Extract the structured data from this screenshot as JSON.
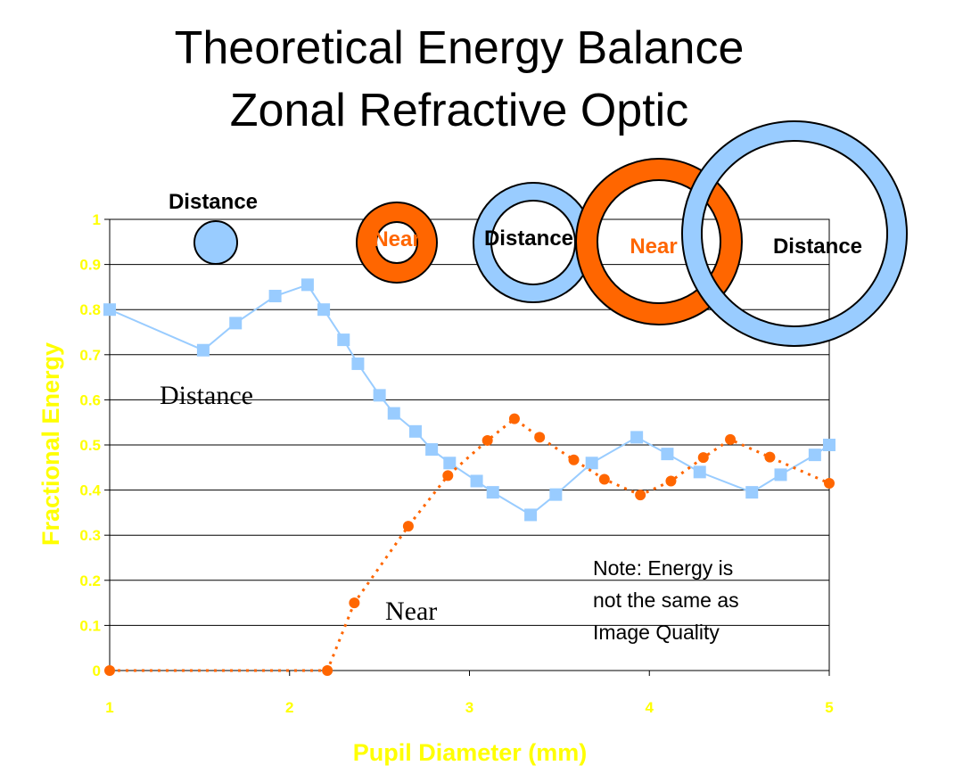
{
  "chart_data": {
    "type": "line",
    "title_line1": "Theoretical Energy Balance",
    "title_line2": "Zonal Refractive Optic",
    "xlabel": "Pupil Diameter (mm)",
    "ylabel": "Fractional Energy",
    "xlim": [
      1,
      5
    ],
    "ylim": [
      0,
      1
    ],
    "x_ticks": [
      "1",
      "2",
      "3",
      "4",
      "5"
    ],
    "y_ticks": [
      "0",
      "0.1",
      "0.2",
      "0.3",
      "0.4",
      "0.5",
      "0.6",
      "0.7",
      "0.8",
      "0.9",
      "1"
    ],
    "grid": "horizontal",
    "series": [
      {
        "name": "Distance",
        "style": "solid",
        "marker": "square",
        "color": "#99CCFF",
        "x": [
          1.0,
          1.52,
          1.7,
          1.92,
          2.1,
          2.19,
          2.3,
          2.38,
          2.5,
          2.58,
          2.7,
          2.79,
          2.89,
          3.04,
          3.13,
          3.34,
          3.48,
          3.68,
          3.93,
          4.1,
          4.28,
          4.57,
          4.73,
          4.92,
          5.0
        ],
        "y": [
          0.8,
          0.71,
          0.77,
          0.83,
          0.855,
          0.8,
          0.733,
          0.68,
          0.61,
          0.57,
          0.53,
          0.49,
          0.46,
          0.42,
          0.395,
          0.345,
          0.39,
          0.46,
          0.517,
          0.48,
          0.44,
          0.395,
          0.434,
          0.478,
          0.5
        ]
      },
      {
        "name": "Near",
        "style": "dotted",
        "marker": "circle",
        "color": "#FF6600",
        "x": [
          1.0,
          2.21,
          2.36,
          2.66,
          2.88,
          3.1,
          3.25,
          3.39,
          3.58,
          3.75,
          3.95,
          4.12,
          4.3,
          4.45,
          4.67,
          5.0
        ],
        "y": [
          0.0,
          0.0,
          0.15,
          0.32,
          0.432,
          0.51,
          0.558,
          0.517,
          0.467,
          0.424,
          0.389,
          0.42,
          0.472,
          0.512,
          0.473,
          0.415
        ]
      }
    ],
    "annotations": {
      "distance": "Distance",
      "near": "Near",
      "note_lines": [
        "Note: Energy is",
        "not the same as",
        "Image Quality"
      ]
    },
    "zone_labels": {
      "distance": "Distance",
      "near": "Near"
    }
  },
  "colors": {
    "distance": "#99CCFF",
    "near": "#FF6600",
    "axis_text": "#FFFF00",
    "grid": "#000000"
  }
}
